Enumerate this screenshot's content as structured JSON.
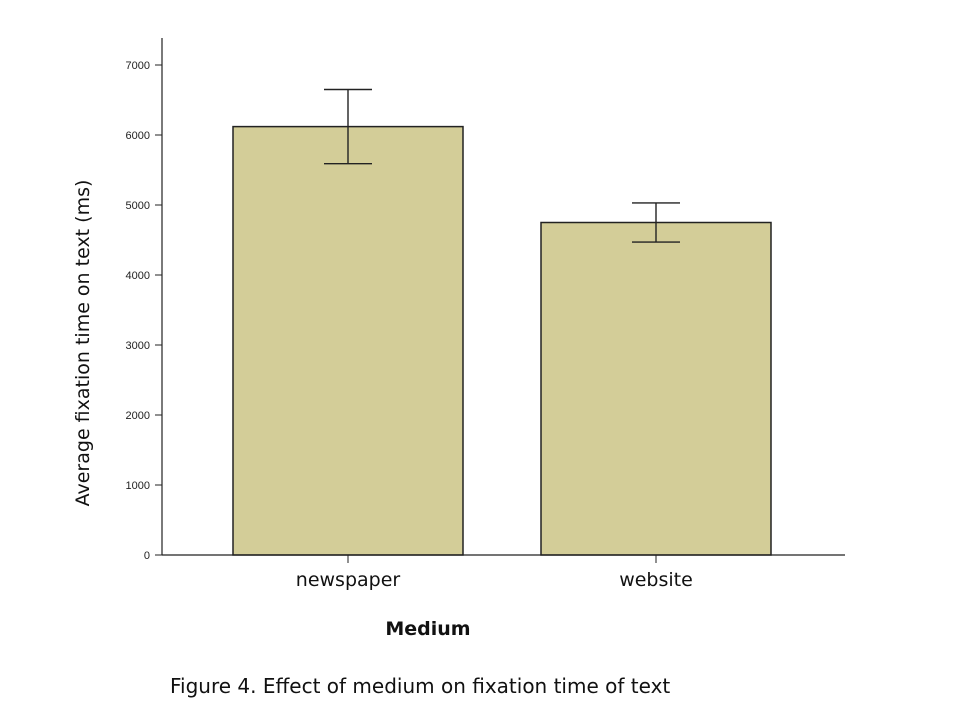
{
  "chart_data": {
    "type": "bar",
    "categories": [
      "newspaper",
      "website"
    ],
    "values": [
      6120,
      4750
    ],
    "error_bars": [
      {
        "lower": 5590,
        "upper": 6650
      },
      {
        "lower": 4470,
        "upper": 5030
      }
    ],
    "xlabel": "Medium",
    "ylabel": "Average fixation time on text (ms)",
    "ylim": [
      0,
      7000
    ],
    "yticks": [
      0,
      1000,
      2000,
      3000,
      4000,
      5000,
      6000,
      7000
    ],
    "grid": false,
    "bar_color": "#d3cd98",
    "bar_edge_color": "#222222"
  },
  "caption": "Figure 4. Effect of medium on fixation time of text"
}
